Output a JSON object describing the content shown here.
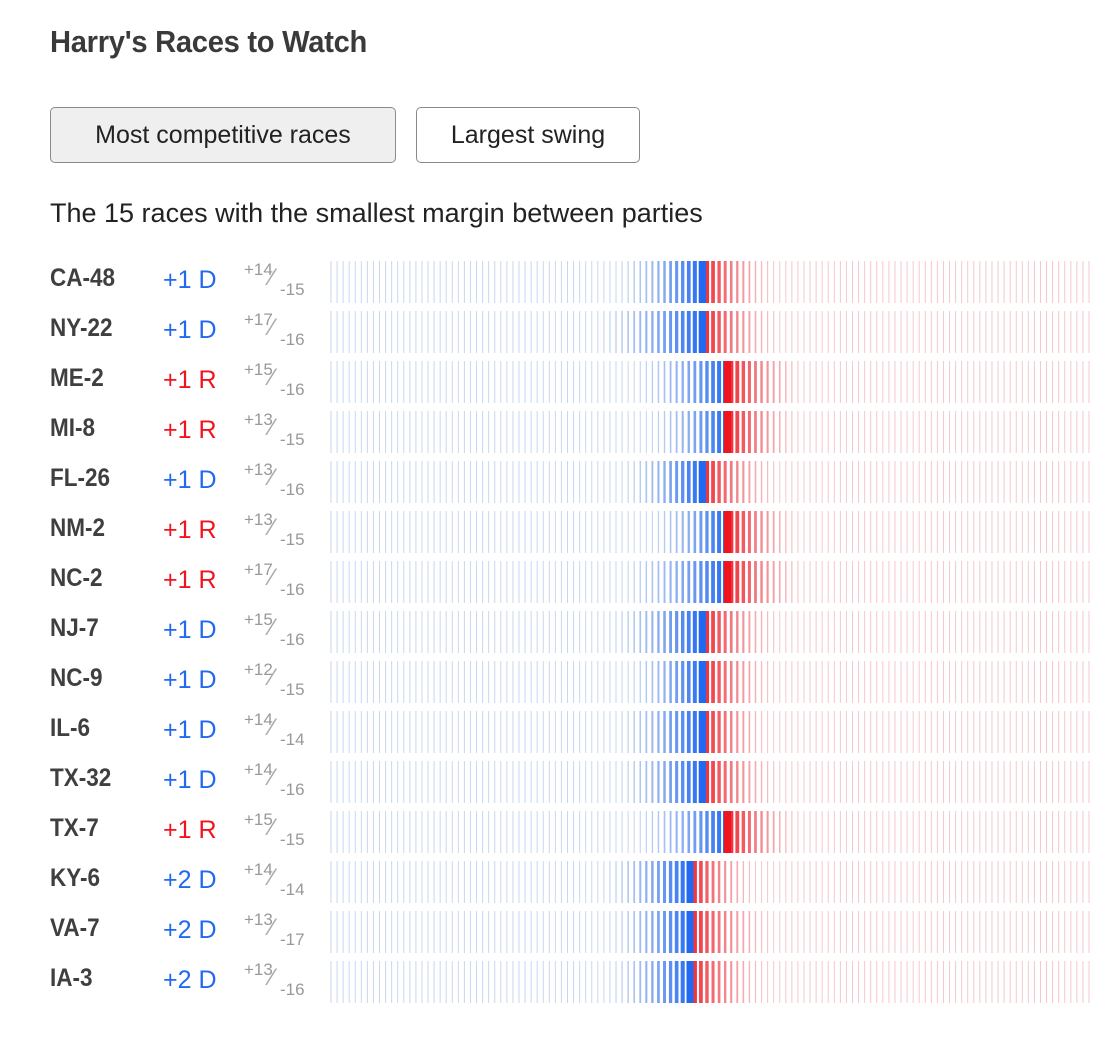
{
  "title": "Harry's Races to Watch",
  "tabs": [
    {
      "label": "Most competitive races",
      "active": true
    },
    {
      "label": "Largest swing",
      "active": false
    }
  ],
  "subtitle": "The 15 races with the smallest margin between parties",
  "colors": {
    "dem": "#2269f2",
    "rep": "#f0141e",
    "text": "#333333"
  },
  "chart_data": {
    "type": "strip",
    "rows": [
      {
        "race": "CA-48",
        "margin": "+1 D",
        "party": "D",
        "hi": "+14",
        "lo": "-15",
        "lead": 1
      },
      {
        "race": "NY-22",
        "margin": "+1 D",
        "party": "D",
        "hi": "+17",
        "lo": "-16",
        "lead": 1
      },
      {
        "race": "ME-2",
        "margin": "+1 R",
        "party": "R",
        "hi": "+15",
        "lo": "-16",
        "lead": -1
      },
      {
        "race": "MI-8",
        "margin": "+1 R",
        "party": "R",
        "hi": "+13",
        "lo": "-15",
        "lead": -1
      },
      {
        "race": "FL-26",
        "margin": "+1 D",
        "party": "D",
        "hi": "+13",
        "lo": "-16",
        "lead": 1
      },
      {
        "race": "NM-2",
        "margin": "+1 R",
        "party": "R",
        "hi": "+13",
        "lo": "-15",
        "lead": -1
      },
      {
        "race": "NC-2",
        "margin": "+1 R",
        "party": "R",
        "hi": "+17",
        "lo": "-16",
        "lead": -1
      },
      {
        "race": "NJ-7",
        "margin": "+1 D",
        "party": "D",
        "hi": "+15",
        "lo": "-16",
        "lead": 1
      },
      {
        "race": "NC-9",
        "margin": "+1 D",
        "party": "D",
        "hi": "+12",
        "lo": "-15",
        "lead": 1
      },
      {
        "race": "IL-6",
        "margin": "+1 D",
        "party": "D",
        "hi": "+14",
        "lo": "-14",
        "lead": 1
      },
      {
        "race": "TX-32",
        "margin": "+1 D",
        "party": "D",
        "hi": "+14",
        "lo": "-16",
        "lead": 1
      },
      {
        "race": "TX-7",
        "margin": "+1 R",
        "party": "R",
        "hi": "+15",
        "lo": "-15",
        "lead": -1
      },
      {
        "race": "KY-6",
        "margin": "+2 D",
        "party": "D",
        "hi": "+14",
        "lo": "-14",
        "lead": 2
      },
      {
        "race": "VA-7",
        "margin": "+2 D",
        "party": "D",
        "hi": "+13",
        "lo": "-17",
        "lead": 2
      },
      {
        "race": "IA-3",
        "margin": "+2 D",
        "party": "D",
        "hi": "+13",
        "lo": "-16",
        "lead": 2
      }
    ]
  }
}
